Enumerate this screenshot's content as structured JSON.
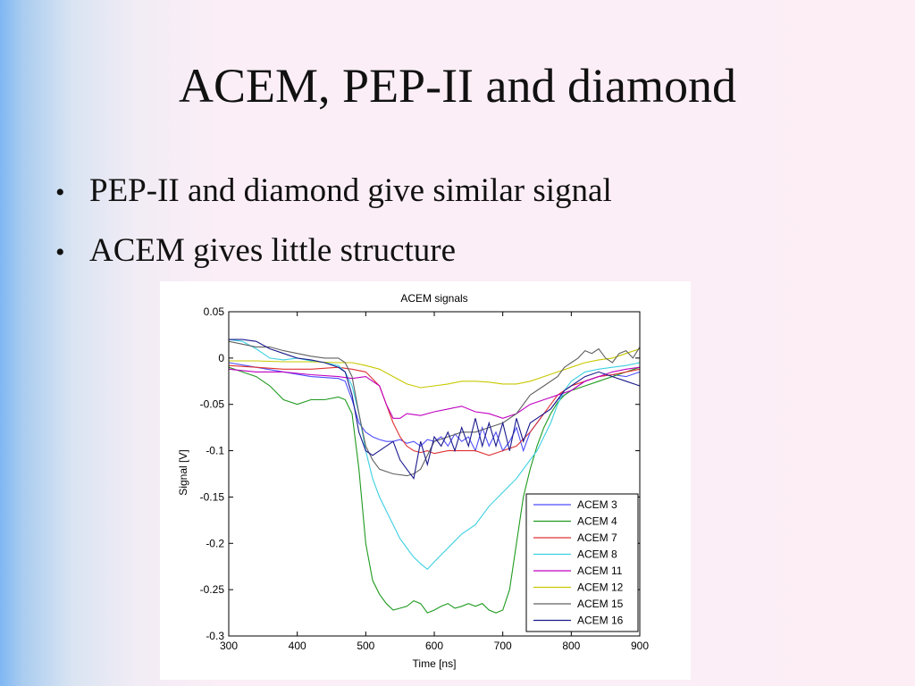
{
  "slide": {
    "title": "ACEM, PEP-II and diamond",
    "bullets": [
      "PEP-II and diamond give similar signal",
      "ACEM gives little structure"
    ]
  },
  "chart_data": {
    "type": "line",
    "title": "ACEM signals",
    "xlabel": "Time [ns]",
    "ylabel": "Signal [V]",
    "xlim": [
      300,
      900
    ],
    "ylim": [
      -0.3,
      0.05
    ],
    "xticks": [
      "300",
      "400",
      "500",
      "600",
      "700",
      "800",
      "900"
    ],
    "yticks": [
      "0.05",
      "0",
      "-0.05",
      "-0.1",
      "-0.15",
      "-0.2",
      "-0.25",
      "-0.3"
    ],
    "grid": false,
    "legend_position": "lower-right",
    "series": [
      {
        "name": "ACEM 3",
        "color": "#4d4dff",
        "x": [
          300,
          340,
          380,
          420,
          460,
          470,
          480,
          490,
          500,
          510,
          520,
          530,
          540,
          550,
          560,
          570,
          580,
          590,
          600,
          610,
          620,
          630,
          640,
          650,
          660,
          670,
          680,
          690,
          700,
          710,
          720,
          730,
          740,
          750,
          760,
          770,
          780,
          790,
          800,
          820,
          840,
          860,
          880,
          900
        ],
        "y": [
          -0.005,
          -0.01,
          -0.015,
          -0.02,
          -0.022,
          -0.025,
          -0.045,
          -0.07,
          -0.08,
          -0.085,
          -0.088,
          -0.09,
          -0.09,
          -0.088,
          -0.092,
          -0.09,
          -0.095,
          -0.088,
          -0.09,
          -0.085,
          -0.095,
          -0.082,
          -0.09,
          -0.085,
          -0.1,
          -0.075,
          -0.095,
          -0.08,
          -0.1,
          -0.09,
          -0.075,
          -0.1,
          -0.08,
          -0.07,
          -0.06,
          -0.055,
          -0.045,
          -0.04,
          -0.035,
          -0.025,
          -0.02,
          -0.018,
          -0.02,
          -0.015
        ]
      },
      {
        "name": "ACEM 4",
        "color": "#1f9a1f",
        "x": [
          300,
          320,
          340,
          360,
          380,
          400,
          420,
          440,
          460,
          470,
          480,
          490,
          500,
          510,
          520,
          530,
          540,
          550,
          560,
          570,
          580,
          590,
          600,
          610,
          620,
          630,
          640,
          650,
          660,
          670,
          680,
          690,
          700,
          710,
          720,
          730,
          740,
          750,
          760,
          770,
          780,
          790,
          800,
          820,
          840,
          860,
          880,
          900
        ],
        "y": [
          -0.01,
          -0.015,
          -0.02,
          -0.03,
          -0.045,
          -0.05,
          -0.045,
          -0.045,
          -0.042,
          -0.045,
          -0.06,
          -0.12,
          -0.2,
          -0.24,
          -0.255,
          -0.265,
          -0.272,
          -0.27,
          -0.268,
          -0.262,
          -0.265,
          -0.275,
          -0.272,
          -0.268,
          -0.265,
          -0.27,
          -0.268,
          -0.265,
          -0.268,
          -0.265,
          -0.272,
          -0.275,
          -0.272,
          -0.25,
          -0.2,
          -0.15,
          -0.12,
          -0.095,
          -0.075,
          -0.06,
          -0.048,
          -0.04,
          -0.035,
          -0.03,
          -0.025,
          -0.02,
          -0.015,
          -0.01
        ]
      },
      {
        "name": "ACEM 7",
        "color": "#e03030",
        "x": [
          300,
          340,
          380,
          420,
          460,
          480,
          500,
          520,
          530,
          540,
          550,
          560,
          570,
          580,
          590,
          600,
          620,
          640,
          660,
          680,
          700,
          720,
          740,
          760,
          780,
          800,
          820,
          840,
          860,
          880,
          900
        ],
        "y": [
          -0.008,
          -0.01,
          -0.012,
          -0.012,
          -0.01,
          -0.012,
          -0.015,
          -0.03,
          -0.05,
          -0.07,
          -0.085,
          -0.095,
          -0.1,
          -0.102,
          -0.1,
          -0.103,
          -0.1,
          -0.1,
          -0.1,
          -0.105,
          -0.1,
          -0.095,
          -0.08,
          -0.06,
          -0.04,
          -0.03,
          -0.025,
          -0.02,
          -0.018,
          -0.015,
          -0.012
        ]
      },
      {
        "name": "ACEM 8",
        "color": "#3ccfe0",
        "x": [
          300,
          320,
          340,
          360,
          380,
          400,
          420,
          440,
          460,
          470,
          480,
          490,
          500,
          510,
          520,
          530,
          540,
          550,
          560,
          570,
          580,
          590,
          600,
          620,
          640,
          660,
          680,
          700,
          720,
          740,
          750,
          760,
          770,
          780,
          790,
          800,
          820,
          840,
          860,
          880,
          900
        ],
        "y": [
          0.02,
          0.018,
          0.01,
          0.0,
          -0.002,
          0.0,
          -0.003,
          -0.005,
          -0.008,
          -0.015,
          -0.03,
          -0.06,
          -0.1,
          -0.13,
          -0.15,
          -0.165,
          -0.18,
          -0.195,
          -0.205,
          -0.215,
          -0.222,
          -0.228,
          -0.22,
          -0.205,
          -0.19,
          -0.18,
          -0.16,
          -0.145,
          -0.13,
          -0.11,
          -0.1,
          -0.085,
          -0.07,
          -0.05,
          -0.035,
          -0.025,
          -0.015,
          -0.012,
          -0.01,
          -0.008,
          -0.005
        ]
      },
      {
        "name": "ACEM 11",
        "color": "#c000c0",
        "x": [
          300,
          340,
          380,
          420,
          460,
          480,
          500,
          520,
          530,
          540,
          550,
          560,
          580,
          600,
          620,
          640,
          660,
          680,
          700,
          720,
          740,
          760,
          780,
          800,
          820,
          840,
          860,
          880,
          900
        ],
        "y": [
          -0.012,
          -0.015,
          -0.015,
          -0.018,
          -0.02,
          -0.022,
          -0.02,
          -0.03,
          -0.05,
          -0.065,
          -0.065,
          -0.06,
          -0.062,
          -0.058,
          -0.055,
          -0.052,
          -0.058,
          -0.06,
          -0.065,
          -0.06,
          -0.05,
          -0.045,
          -0.04,
          -0.035,
          -0.025,
          -0.02,
          -0.015,
          -0.012,
          -0.01
        ]
      },
      {
        "name": "ACEM 12",
        "color": "#c8c800",
        "x": [
          300,
          340,
          380,
          420,
          460,
          480,
          500,
          520,
          540,
          560,
          580,
          600,
          620,
          640,
          660,
          680,
          700,
          720,
          740,
          760,
          780,
          800,
          820,
          840,
          860,
          880,
          900
        ],
        "y": [
          -0.003,
          -0.003,
          -0.004,
          -0.004,
          -0.005,
          -0.005,
          -0.008,
          -0.012,
          -0.02,
          -0.028,
          -0.032,
          -0.03,
          -0.028,
          -0.025,
          -0.025,
          -0.026,
          -0.028,
          -0.028,
          -0.025,
          -0.02,
          -0.015,
          -0.01,
          -0.005,
          -0.002,
          0.0,
          0.005,
          0.01
        ]
      },
      {
        "name": "ACEM 15",
        "color": "#606060",
        "x": [
          300,
          320,
          340,
          360,
          380,
          400,
          420,
          440,
          460,
          470,
          480,
          490,
          500,
          510,
          520,
          540,
          560,
          570,
          580,
          590,
          600,
          620,
          640,
          660,
          680,
          700,
          720,
          740,
          760,
          780,
          790,
          800,
          810,
          820,
          830,
          840,
          850,
          860,
          870,
          880,
          890,
          900
        ],
        "y": [
          0.018,
          0.015,
          0.012,
          0.012,
          0.008,
          0.005,
          0.002,
          0.0,
          0.0,
          -0.005,
          -0.02,
          -0.06,
          -0.095,
          -0.11,
          -0.12,
          -0.125,
          -0.127,
          -0.125,
          -0.12,
          -0.105,
          -0.09,
          -0.085,
          -0.08,
          -0.08,
          -0.075,
          -0.07,
          -0.06,
          -0.04,
          -0.03,
          -0.02,
          -0.01,
          -0.005,
          0.0,
          0.008,
          0.005,
          0.01,
          0.0,
          -0.005,
          0.005,
          0.008,
          0.0,
          0.012
        ]
      },
      {
        "name": "ACEM 16",
        "color": "#1a1a8c",
        "x": [
          300,
          320,
          340,
          360,
          380,
          400,
          420,
          440,
          460,
          470,
          480,
          490,
          500,
          510,
          520,
          530,
          540,
          550,
          560,
          570,
          580,
          590,
          600,
          610,
          620,
          630,
          640,
          650,
          660,
          670,
          680,
          690,
          700,
          710,
          720,
          730,
          740,
          750,
          760,
          770,
          780,
          790,
          800,
          820,
          840,
          860,
          880,
          900
        ],
        "y": [
          0.02,
          0.02,
          0.018,
          0.01,
          0.005,
          0.0,
          -0.002,
          -0.005,
          -0.01,
          -0.015,
          -0.04,
          -0.08,
          -0.1,
          -0.105,
          -0.1,
          -0.095,
          -0.09,
          -0.11,
          -0.12,
          -0.13,
          -0.09,
          -0.115,
          -0.085,
          -0.095,
          -0.08,
          -0.1,
          -0.075,
          -0.095,
          -0.065,
          -0.095,
          -0.07,
          -0.095,
          -0.07,
          -0.1,
          -0.065,
          -0.09,
          -0.07,
          -0.065,
          -0.06,
          -0.055,
          -0.045,
          -0.035,
          -0.03,
          -0.02,
          -0.015,
          -0.02,
          -0.025,
          -0.03
        ]
      }
    ]
  }
}
